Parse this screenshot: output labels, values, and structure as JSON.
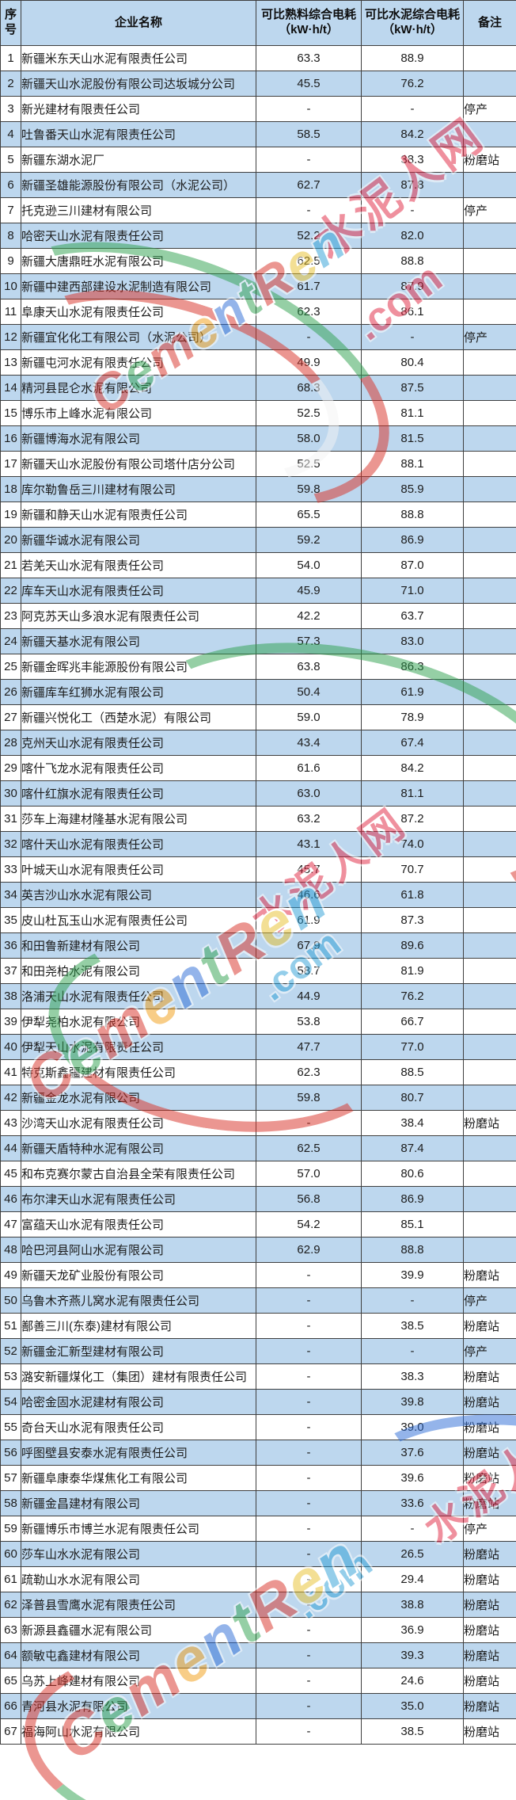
{
  "table": {
    "header": {
      "no_line1": "序",
      "no_line2": "号",
      "company": "企业名称",
      "clinker_line1": "可比熟料综合电耗",
      "clinker_line2": "（kW·h/t）",
      "cement_line1": "可比水泥综合电耗",
      "cement_line2": "（kW·h/t）",
      "note": "备注"
    },
    "rows": [
      [
        "1",
        "新疆米东天山水泥有限责任公司",
        "63.3",
        "88.9",
        ""
      ],
      [
        "2",
        "新疆天山水泥股份有限公司达坂城分公司",
        "45.5",
        "76.2",
        ""
      ],
      [
        "3",
        "新光建材有限责任公司",
        "-",
        "-",
        "停产"
      ],
      [
        "4",
        "吐鲁番天山水泥有限责任公司",
        "58.5",
        "84.2",
        ""
      ],
      [
        "5",
        "新疆东湖水泥厂",
        "-",
        "38.3",
        "粉磨站"
      ],
      [
        "6",
        "新疆圣雄能源股份有限公司（水泥公司）",
        "62.7",
        "87.8",
        ""
      ],
      [
        "7",
        "托克逊三川建材有限公司",
        "-",
        "-",
        "停产"
      ],
      [
        "8",
        "哈密天山水泥有限责任公司",
        "52.2",
        "82.0",
        ""
      ],
      [
        "9",
        "新疆大唐鼎旺水泥有限公司",
        "62.5",
        "88.8",
        ""
      ],
      [
        "10",
        "新疆中建西部建设水泥制造有限公司",
        "61.7",
        "87.9",
        ""
      ],
      [
        "11",
        "阜康天山水泥有限责任公司",
        "62.3",
        "86.1",
        ""
      ],
      [
        "12",
        "新疆宜化化工有限公司（水泥公司）",
        "-",
        "-",
        "停产"
      ],
      [
        "13",
        "新疆屯河水泥有限责任公司",
        "49.9",
        "80.4",
        ""
      ],
      [
        "14",
        "精河县昆仑水泥有限公司",
        "68.3",
        "87.5",
        ""
      ],
      [
        "15",
        "博乐市上峰水泥有限公司",
        "52.5",
        "81.1",
        ""
      ],
      [
        "16",
        "新疆博海水泥有限公司",
        "58.0",
        "81.5",
        ""
      ],
      [
        "17",
        "新疆天山水泥股份有限公司塔什店分公司",
        "52.5",
        "88.1",
        ""
      ],
      [
        "18",
        "库尔勒鲁岳三川建材有限公司",
        "59.8",
        "85.9",
        ""
      ],
      [
        "19",
        "新疆和静天山水泥有限责任公司",
        "65.5",
        "88.8",
        ""
      ],
      [
        "20",
        "新疆华诚水泥有限公司",
        "59.2",
        "86.9",
        ""
      ],
      [
        "21",
        "若羌天山水泥有限责任公司",
        "54.0",
        "87.0",
        ""
      ],
      [
        "22",
        "库车天山水泥有限责任公司",
        "45.9",
        "71.0",
        ""
      ],
      [
        "23",
        "阿克苏天山多浪水泥有限责任公司",
        "42.2",
        "63.7",
        ""
      ],
      [
        "24",
        "新疆天基水泥有限公司",
        "57.3",
        "83.0",
        ""
      ],
      [
        "25",
        "新疆金晖兆丰能源股份有限公司",
        "63.8",
        "86.3",
        ""
      ],
      [
        "26",
        "新疆库车红狮水泥有限公司",
        "50.4",
        "61.9",
        ""
      ],
      [
        "27",
        "新疆兴悦化工（西楚水泥）有限公司",
        "59.0",
        "78.9",
        ""
      ],
      [
        "28",
        "克州天山水泥有限责任公司",
        "43.4",
        "67.4",
        ""
      ],
      [
        "29",
        "喀什飞龙水泥有限责任公司",
        "61.6",
        "84.2",
        ""
      ],
      [
        "30",
        "喀什红旗水泥有限责任公司",
        "63.0",
        "81.1",
        ""
      ],
      [
        "31",
        "莎车上海建材隆基水泥有限公司",
        "63.2",
        "87.2",
        ""
      ],
      [
        "32",
        "喀什天山水泥有限责任公司",
        "43.1",
        "74.0",
        ""
      ],
      [
        "33",
        "叶城天山水泥有限责任公司",
        "45.7",
        "70.7",
        ""
      ],
      [
        "34",
        "英吉沙山水水泥有限公司",
        "46.6",
        "61.8",
        ""
      ],
      [
        "35",
        "皮山杜瓦玉山水泥有限责任公司",
        "61.9",
        "87.3",
        ""
      ],
      [
        "36",
        "和田鲁新建材有限公司",
        "67.9",
        "89.6",
        ""
      ],
      [
        "37",
        "和田尧柏水泥有限公司",
        "58.7",
        "81.9",
        ""
      ],
      [
        "38",
        "洛浦天山水泥有限责任公司",
        "44.9",
        "76.2",
        ""
      ],
      [
        "39",
        "伊犁尧柏水泥有限公司",
        "53.8",
        "66.7",
        ""
      ],
      [
        "40",
        "伊犁天山水泥有限责任公司",
        "47.7",
        "77.0",
        ""
      ],
      [
        "41",
        "特克斯鑫疆建材有限责任公司",
        "62.3",
        "88.5",
        ""
      ],
      [
        "42",
        "新疆金龙水泥有限公司",
        "59.8",
        "80.7",
        ""
      ],
      [
        "43",
        "沙湾天山水泥有限责任公司",
        "-",
        "38.4",
        "粉磨站"
      ],
      [
        "44",
        "新疆天盾特种水泥有限公司",
        "62.5",
        "87.4",
        ""
      ],
      [
        "45",
        "和布克赛尔蒙古自治县全荣有限责任公司",
        "57.0",
        "80.6",
        ""
      ],
      [
        "46",
        "布尔津天山水泥有限责任公司",
        "56.8",
        "86.9",
        ""
      ],
      [
        "47",
        "富蕴天山水泥有限责任公司",
        "54.2",
        "85.1",
        ""
      ],
      [
        "48",
        "哈巴河县阿山水泥有限公司",
        "62.9",
        "88.8",
        ""
      ],
      [
        "49",
        "新疆天龙矿业股份有限公司",
        "-",
        "39.9",
        "粉磨站"
      ],
      [
        "50",
        "乌鲁木齐燕儿窝水泥有限责任公司",
        "-",
        "-",
        "停产"
      ],
      [
        "51",
        "鄯善三川(东泰)建材有限公司",
        "-",
        "38.5",
        "粉磨站"
      ],
      [
        "52",
        "新疆金汇新型建材有限公司",
        "-",
        "-",
        "停产"
      ],
      [
        "53",
        "潞安新疆煤化工（集团）建材有限责任公司",
        "-",
        "38.3",
        "粉磨站"
      ],
      [
        "54",
        "哈密金固水泥建材有限公司",
        "-",
        "39.8",
        "粉磨站"
      ],
      [
        "55",
        "奇台天山水泥有限责任公司",
        "-",
        "39.0",
        "粉磨站"
      ],
      [
        "56",
        "呼图壁县安泰水泥有限责任公司",
        "-",
        "37.6",
        "粉磨站"
      ],
      [
        "57",
        "新疆阜康泰华煤焦化工有限公司",
        "-",
        "39.6",
        "粉磨站"
      ],
      [
        "58",
        "新疆金昌建材有限公司",
        "-",
        "33.6",
        "粉磨站"
      ],
      [
        "59",
        "新疆博乐市博兰水泥有限责任公司",
        "-",
        "-",
        "停产"
      ],
      [
        "60",
        "莎车山水水泥有限公司",
        "-",
        "26.5",
        "粉磨站"
      ],
      [
        "61",
        "疏勒山水水泥有限公司",
        "-",
        "29.4",
        "粉磨站"
      ],
      [
        "62",
        "泽普县雪鹰水泥有限责任公司",
        "-",
        "38.8",
        "粉磨站"
      ],
      [
        "63",
        "新源县鑫疆水泥有限公司",
        "-",
        "36.9",
        "粉磨站"
      ],
      [
        "64",
        "额敏屯鑫建材有限公司",
        "-",
        "39.3",
        "粉磨站"
      ],
      [
        "65",
        "乌苏上峰建材有限公司",
        "-",
        "24.6",
        "粉磨站"
      ],
      [
        "66",
        "青河县水泥有限公司",
        "-",
        "35.0",
        "粉磨站"
      ],
      [
        "67",
        "福海阿山水泥有限公司",
        "-",
        "38.5",
        "粉磨站"
      ]
    ]
  },
  "watermark": {
    "brand_cn": "水泥人网",
    "brand_en": "CementRen",
    "brand_suffix": ".com",
    "cn_color": "#e02440",
    "letter_colors": [
      "#d93025",
      "#2ea04e",
      "#d93025",
      "#f29d12",
      "#2b6bd6",
      "#2ea04e",
      "#d93025",
      "#e8c12b",
      "#2b9ed6"
    ]
  },
  "colors": {
    "row_alt_blue": "#bdd7ee",
    "header_blue": "#bdd7ee",
    "grid_border": "#3f3f3f",
    "text": "#1c1c1c"
  }
}
